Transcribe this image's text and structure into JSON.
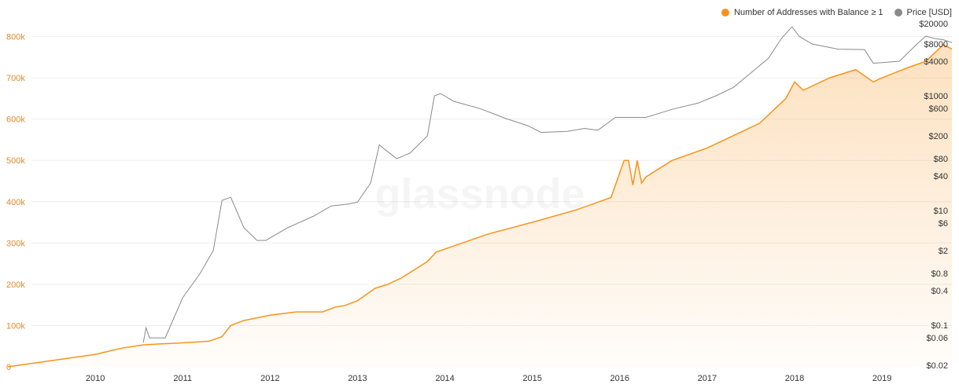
{
  "watermark": "glassnode",
  "legend": {
    "items": [
      {
        "label": "Number of Addresses with Balance ≥ 1",
        "color": "#f7931a"
      },
      {
        "label": "Price [USD]",
        "color": "#8a8a8a"
      }
    ]
  },
  "chart_data": {
    "type": "line",
    "x_ticks": [
      "2010",
      "2011",
      "2012",
      "2013",
      "2014",
      "2015",
      "2016",
      "2017",
      "2018",
      "2019"
    ],
    "xlim": [
      2009.0,
      2019.8
    ],
    "left_axis": {
      "ticks": [
        "0",
        "100k",
        "200k",
        "300k",
        "400k",
        "500k",
        "600k",
        "700k",
        "800k"
      ],
      "ylim": [
        0,
        860000
      ],
      "color": "#e08a2e"
    },
    "right_axis": {
      "scale": "log",
      "ticks": [
        "$20000",
        "$8000",
        "$4000",
        "$1000",
        "$600",
        "$200",
        "$80",
        "$40",
        "$10",
        "$6",
        "$2",
        "$0.8",
        "$0.4",
        "$0.1",
        "$0.06",
        "$0.02"
      ],
      "ylim": [
        0.02,
        20000
      ]
    },
    "series": [
      {
        "name": "Number of Addresses with Balance ≥ 1",
        "color": "#f7931a",
        "fill": true,
        "axis": "left",
        "x": [
          2009.0,
          2009.5,
          2010.0,
          2010.3,
          2010.55,
          2010.7,
          2011.0,
          2011.3,
          2011.45,
          2011.55,
          2011.7,
          2012.0,
          2012.3,
          2012.6,
          2012.75,
          2012.85,
          2013.0,
          2013.2,
          2013.35,
          2013.5,
          2013.8,
          2013.9,
          2014.2,
          2014.5,
          2015.0,
          2015.5,
          2015.9,
          2016.05,
          2016.1,
          2016.15,
          2016.2,
          2016.25,
          2016.3,
          2016.6,
          2017.0,
          2017.3,
          2017.6,
          2017.9,
          2018.0,
          2018.1,
          2018.4,
          2018.7,
          2018.9,
          2019.0,
          2019.3,
          2019.5,
          2019.7,
          2019.8
        ],
        "values": [
          0,
          15000,
          30000,
          45000,
          53000,
          55000,
          58000,
          62000,
          73000,
          100000,
          112000,
          125000,
          133000,
          133000,
          145000,
          148000,
          160000,
          190000,
          200000,
          215000,
          255000,
          278000,
          300000,
          322000,
          350000,
          380000,
          410000,
          500000,
          500000,
          440000,
          500000,
          445000,
          460000,
          500000,
          530000,
          560000,
          590000,
          650000,
          690000,
          670000,
          700000,
          720000,
          690000,
          700000,
          725000,
          740000,
          780000,
          770000
        ]
      },
      {
        "name": "Price [USD]",
        "color": "#8a8a8a",
        "fill": false,
        "axis": "right",
        "x": [
          2010.55,
          2010.58,
          2010.62,
          2010.8,
          2011.0,
          2011.2,
          2011.35,
          2011.45,
          2011.55,
          2011.7,
          2011.85,
          2011.95,
          2012.2,
          2012.5,
          2012.7,
          2012.9,
          2013.0,
          2013.15,
          2013.25,
          2013.3,
          2013.45,
          2013.6,
          2013.8,
          2013.88,
          2013.95,
          2014.1,
          2014.4,
          2014.7,
          2014.95,
          2015.1,
          2015.4,
          2015.6,
          2015.75,
          2015.95,
          2016.3,
          2016.6,
          2016.9,
          2017.1,
          2017.3,
          2017.5,
          2017.7,
          2017.85,
          2017.97,
          2018.05,
          2018.2,
          2018.5,
          2018.8,
          2018.9,
          2019.0,
          2019.2,
          2019.4,
          2019.5,
          2019.6,
          2019.7,
          2019.8
        ],
        "values": [
          0.05,
          0.09,
          0.06,
          0.06,
          0.3,
          0.8,
          2.0,
          15,
          17,
          5,
          3,
          3,
          5,
          8,
          12,
          13,
          14,
          30,
          140,
          120,
          80,
          100,
          200,
          1000,
          1100,
          800,
          600,
          400,
          300,
          230,
          240,
          270,
          250,
          420,
          420,
          580,
          750,
          1000,
          1400,
          2500,
          4500,
          10000,
          16000,
          11000,
          8000,
          6500,
          6400,
          3700,
          3800,
          4000,
          8000,
          11000,
          10000,
          9500,
          8500
        ]
      }
    ]
  }
}
